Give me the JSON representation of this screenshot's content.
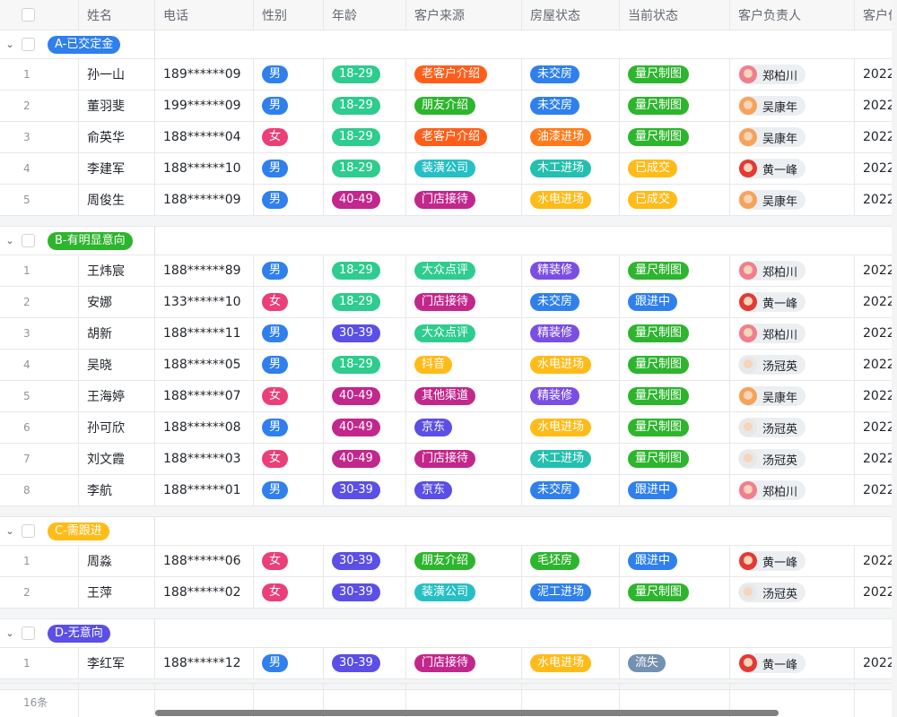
{
  "columns": [
    "姓名",
    "电话",
    "性别",
    "年龄",
    "客户来源",
    "房屋状态",
    "当前状态",
    "客户负责人",
    "客户价"
  ],
  "tag_colors": {
    "男": "#2f80ed",
    "女": "#eb3f78",
    "18-29": "#2ecc8e",
    "30-39": "#5b4fe6",
    "40-49": "#c2278c",
    "老客户介绍": "#ff5e1a",
    "朋友介绍": "#2db52d",
    "装潢公司": "#25bfc4",
    "门店接待": "#c2278c",
    "大众点评": "#2ecc8e",
    "抖音": "#ffbb18",
    "其他渠道": "#c2278c",
    "京东": "#5b4fe6",
    "未交房": "#2f80ed",
    "油漆进场": "#ff7a1a",
    "木工进场": "#25bfaf",
    "水电进场": "#ffbb18",
    "精装修": "#7b4ee3",
    "毛坯房": "#2db52d",
    "泥工进场": "#2f80ed",
    "量尺制图": "#2db52d",
    "已成交": "#ffbb18",
    "跟进中": "#2f80ed",
    "流失": "#7391b0"
  },
  "owner_colors": {
    "郑柏川": "#f07e8e",
    "吴康年": "#f7a25a",
    "黄一峰": "#e53935",
    "汤冠英": "#e8e8e8"
  },
  "groups": [
    {
      "label": "A-已交定金",
      "color": "#2f80ed",
      "rows": [
        [
          "1",
          "孙一山",
          "189******09",
          "男",
          "18-29",
          "老客户介绍",
          "未交房",
          "量尺制图",
          "郑柏川",
          "2022"
        ],
        [
          "2",
          "董羽斐",
          "199******09",
          "男",
          "18-29",
          "朋友介绍",
          "未交房",
          "量尺制图",
          "吴康年",
          "2022"
        ],
        [
          "3",
          "俞英华",
          "188******04",
          "女",
          "18-29",
          "老客户介绍",
          "油漆进场",
          "量尺制图",
          "吴康年",
          "2022"
        ],
        [
          "4",
          "李建军",
          "188******10",
          "男",
          "18-29",
          "装潢公司",
          "木工进场",
          "已成交",
          "黄一峰",
          "2022"
        ],
        [
          "5",
          "周俊生",
          "188******09",
          "男",
          "40-49",
          "门店接待",
          "水电进场",
          "已成交",
          "吴康年",
          "2022"
        ]
      ]
    },
    {
      "label": "B-有明显意向",
      "color": "#2db52d",
      "rows": [
        [
          "1",
          "王炜宸",
          "188******89",
          "男",
          "18-29",
          "大众点评",
          "精装修",
          "量尺制图",
          "郑柏川",
          "2022"
        ],
        [
          "2",
          "安娜",
          "133******10",
          "女",
          "18-29",
          "门店接待",
          "未交房",
          "跟进中",
          "黄一峰",
          "2022"
        ],
        [
          "3",
          "胡新",
          "188******11",
          "男",
          "30-39",
          "大众点评",
          "精装修",
          "量尺制图",
          "郑柏川",
          "2022"
        ],
        [
          "4",
          "吴晓",
          "188******05",
          "男",
          "18-29",
          "抖音",
          "水电进场",
          "量尺制图",
          "汤冠英",
          "2022"
        ],
        [
          "5",
          "王海婷",
          "188******07",
          "女",
          "40-49",
          "其他渠道",
          "精装修",
          "量尺制图",
          "吴康年",
          "2022"
        ],
        [
          "6",
          "孙可欣",
          "188******08",
          "男",
          "40-49",
          "京东",
          "水电进场",
          "量尺制图",
          "汤冠英",
          "2022"
        ],
        [
          "7",
          "刘文霞",
          "188******03",
          "女",
          "40-49",
          "门店接待",
          "木工进场",
          "量尺制图",
          "汤冠英",
          "2022"
        ],
        [
          "8",
          "李航",
          "188******01",
          "男",
          "30-39",
          "京东",
          "未交房",
          "跟进中",
          "郑柏川",
          "2022"
        ]
      ]
    },
    {
      "label": "C-需跟进",
      "color": "#ffbb18",
      "rows": [
        [
          "1",
          "周淼",
          "188******06",
          "女",
          "30-39",
          "朋友介绍",
          "毛坯房",
          "跟进中",
          "黄一峰",
          "2022"
        ],
        [
          "2",
          "王萍",
          "188******02",
          "女",
          "30-39",
          "装潢公司",
          "泥工进场",
          "量尺制图",
          "汤冠英",
          "2022"
        ]
      ]
    },
    {
      "label": "D-无意向",
      "color": "#5b4fe6",
      "rows": [
        [
          "1",
          "李红军",
          "188******12",
          "男",
          "30-39",
          "门店接待",
          "水电进场",
          "流失",
          "黄一峰",
          "2022"
        ]
      ]
    }
  ],
  "footer": {
    "count": "16条"
  }
}
